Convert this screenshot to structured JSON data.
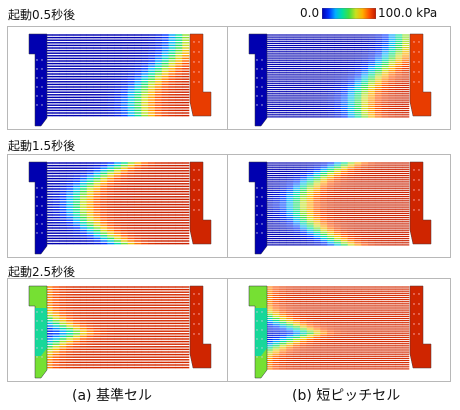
{
  "color_scale": {
    "min_label": "0.0",
    "max_label": "100.0 kPa",
    "colors": [
      "#0000b0",
      "#0030ff",
      "#00b0ff",
      "#00e0a0",
      "#40e040",
      "#c8e020",
      "#ffb000",
      "#ff5000",
      "#c01800"
    ]
  },
  "rows": [
    {
      "label": "起動0.5秒後",
      "fill": 0.1
    },
    {
      "label": "起動1.5秒後",
      "fill": 0.55
    },
    {
      "label": "起動2.5秒後",
      "fill": 0.95
    }
  ],
  "columns": [
    {
      "caption": "(a) 基準セル"
    },
    {
      "caption": "(b) 短ピッチセル"
    }
  ]
}
